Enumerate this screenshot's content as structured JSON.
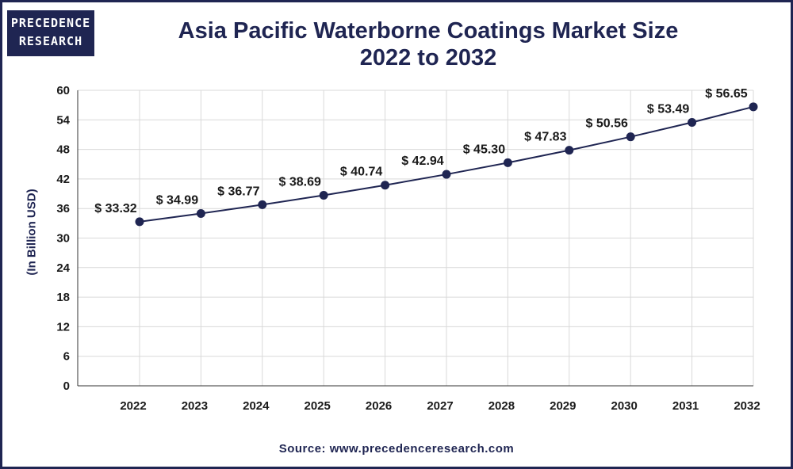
{
  "logo": {
    "line1": "PRECEDENCE",
    "line2": "RESEARCH"
  },
  "source": "Source: www.precedenceresearch.com",
  "colors": {
    "primary": "#1f2552",
    "grid": "#d9d9d9"
  },
  "chart_data": {
    "type": "line",
    "title_line1": "Asia Pacific Waterborne Coatings Market Size",
    "title_line2": "2022 to 2032",
    "ylabel": "(In Billion USD)",
    "xlabel": "",
    "categories": [
      "2022",
      "2023",
      "2024",
      "2025",
      "2026",
      "2027",
      "2028",
      "2029",
      "2030",
      "2031",
      "2032"
    ],
    "values": [
      33.32,
      34.99,
      36.77,
      38.69,
      40.74,
      42.94,
      45.3,
      47.83,
      50.56,
      53.49,
      56.65
    ],
    "data_labels": [
      "$ 33.32",
      "$ 34.99",
      "$ 36.77",
      "$ 38.69",
      "$ 40.74",
      "$ 42.94",
      "$ 45.30",
      "$ 47.83",
      "$ 50.56",
      "$ 53.49",
      "$ 56.65"
    ],
    "ylim": [
      0,
      60
    ],
    "yticks": [
      0,
      6,
      12,
      18,
      24,
      30,
      36,
      42,
      48,
      54,
      60
    ],
    "grid": true,
    "legend": "none"
  }
}
